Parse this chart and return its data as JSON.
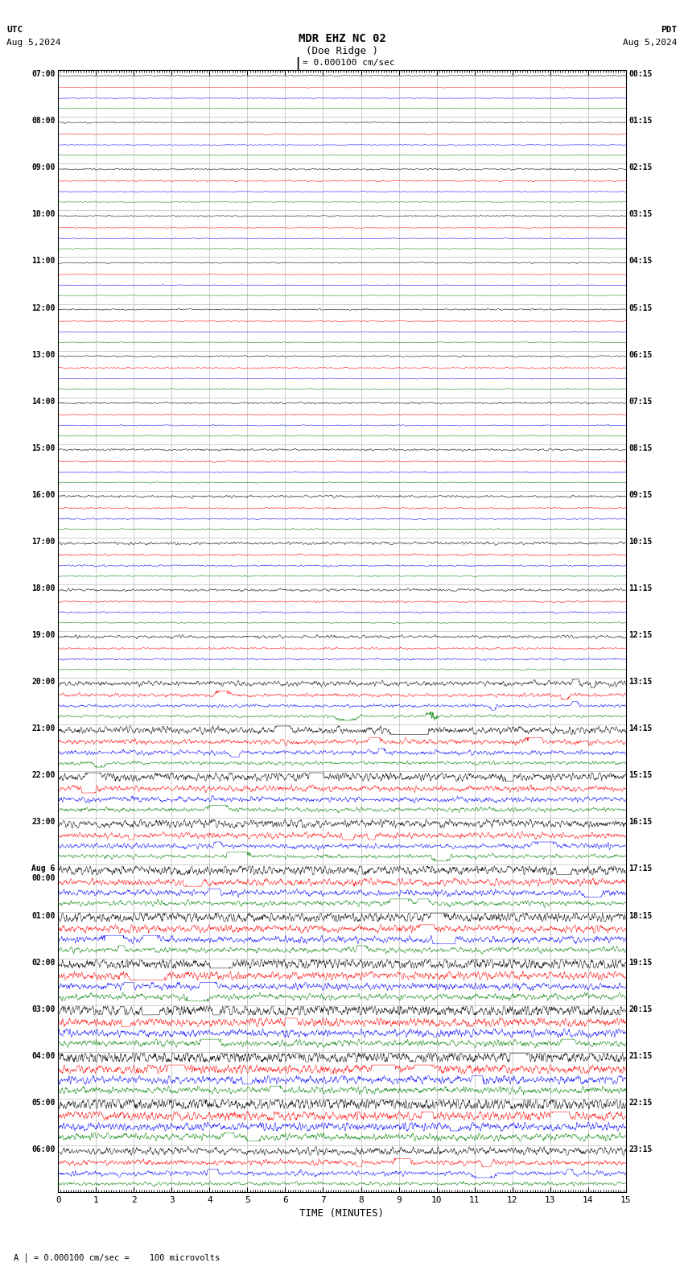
{
  "title_line1": "MDR EHZ NC 02",
  "title_line2": "(Doe Ridge )",
  "scale_label": "= 0.000100 cm/sec",
  "utc_label": "UTC",
  "utc_date": "Aug 5,2024",
  "pdt_label": "PDT",
  "pdt_date": "Aug 5,2024",
  "bottom_label": "TIME (MINUTES)",
  "bottom_note": "= 0.000100 cm/sec =    100 microvolts",
  "xlim": [
    0,
    15
  ],
  "xticks": [
    0,
    1,
    2,
    3,
    4,
    5,
    6,
    7,
    8,
    9,
    10,
    11,
    12,
    13,
    14,
    15
  ],
  "left_times": [
    "07:00",
    "08:00",
    "09:00",
    "10:00",
    "11:00",
    "12:00",
    "13:00",
    "14:00",
    "15:00",
    "16:00",
    "17:00",
    "18:00",
    "19:00",
    "20:00",
    "21:00",
    "22:00",
    "23:00",
    "Aug 6\n00:00",
    "01:00",
    "02:00",
    "03:00",
    "04:00",
    "05:00",
    "06:00"
  ],
  "right_times": [
    "00:15",
    "01:15",
    "02:15",
    "03:15",
    "04:15",
    "05:15",
    "06:15",
    "07:15",
    "08:15",
    "09:15",
    "10:15",
    "11:15",
    "12:15",
    "13:15",
    "14:15",
    "15:15",
    "16:15",
    "17:15",
    "18:15",
    "19:15",
    "20:15",
    "21:15",
    "22:15",
    "23:15"
  ],
  "n_rows": 24,
  "trace_colors": [
    "black",
    "red",
    "blue",
    "green"
  ],
  "background_color": "#ffffff",
  "grid_color": "#aaaaaa",
  "figsize": [
    8.5,
    15.84
  ],
  "dpi": 100,
  "seed": 42,
  "amp_by_row": [
    0.012,
    0.014,
    0.018,
    0.016,
    0.013,
    0.015,
    0.016,
    0.02,
    0.022,
    0.025,
    0.03,
    0.028,
    0.032,
    0.055,
    0.08,
    0.095,
    0.09,
    0.11,
    0.12,
    0.13,
    0.14,
    0.15,
    0.155,
    0.08
  ],
  "amp_multiplier_by_channel": [
    1.0,
    0.7,
    0.6,
    0.5
  ],
  "n_traces_per_row": 4,
  "n_pts": 2000
}
